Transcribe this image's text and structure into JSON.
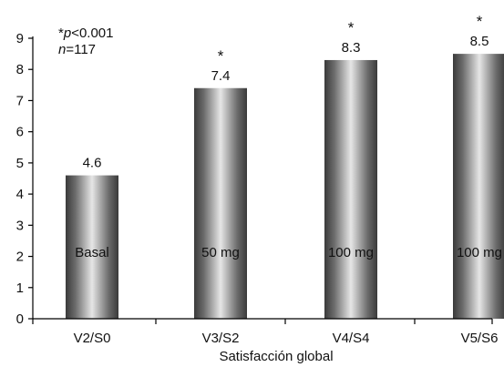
{
  "chart_data": {
    "type": "bar",
    "categories": [
      "V2/S0",
      "V3/S2",
      "V4/S4",
      "V5/S6"
    ],
    "values": [
      4.6,
      7.4,
      8.3,
      8.5
    ],
    "value_labels": [
      "4.6",
      "7.4",
      "8.3",
      "8.5"
    ],
    "bar_labels": [
      "Basal",
      "50 mg",
      "100 mg",
      "100 mg"
    ],
    "significance": [
      "",
      "*",
      "*",
      "*"
    ],
    "title": "",
    "xlabel": "Satisfacción global",
    "ylabel": "",
    "ylim": [
      0,
      9
    ],
    "yticks": [
      0,
      1,
      2,
      3,
      4,
      5,
      6,
      7,
      8,
      9
    ],
    "grid": false,
    "annotations": {
      "p_star": "*",
      "p_var": "p",
      "p_rest": "<0.001",
      "n_var": "n",
      "n_rest": "=117"
    },
    "colors": {
      "bar_edge": "#3a3a3a",
      "bar_center": "#e6e6e6",
      "axis": "#000000"
    }
  }
}
